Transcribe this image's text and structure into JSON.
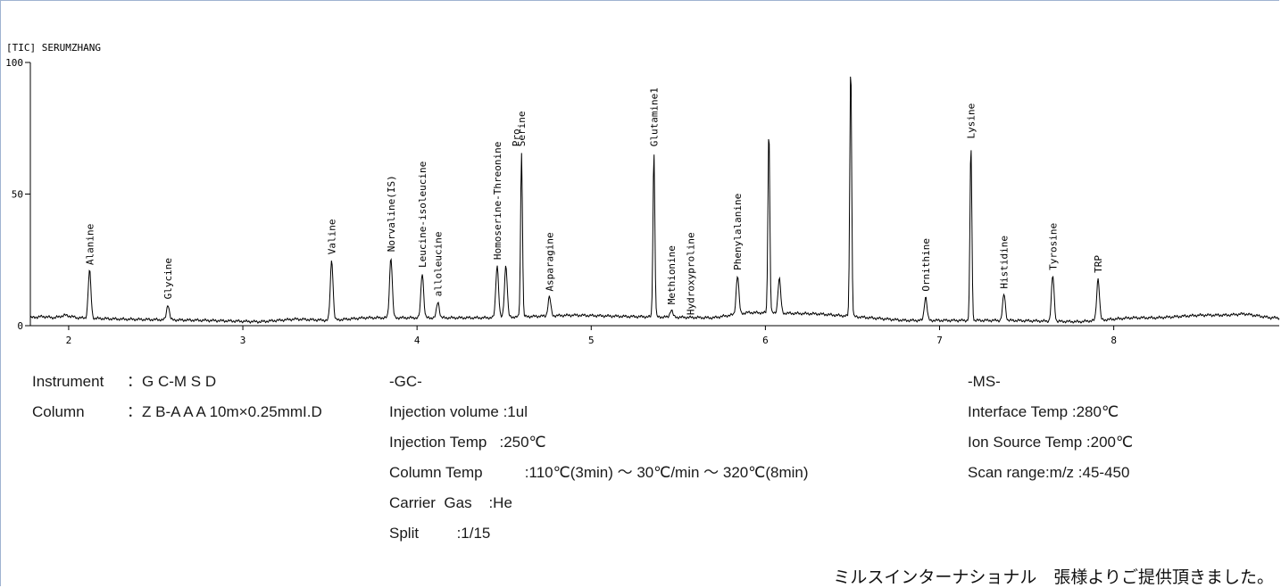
{
  "chart_data": {
    "type": "line",
    "title": "[TIC] SERUMZHANG",
    "xlabel": "",
    "ylabel": "",
    "xlim": [
      1.78,
      8.95
    ],
    "ylim": [
      0,
      100
    ],
    "x_ticks": [
      "2",
      "3",
      "4",
      "5",
      "6",
      "7",
      "8"
    ],
    "y_ticks": [
      "0",
      "50",
      "100"
    ],
    "grid": false,
    "baseline": [
      [
        1.78,
        3
      ],
      [
        1.85,
        3.5
      ],
      [
        1.92,
        3
      ],
      [
        1.98,
        4
      ],
      [
        2.05,
        3
      ],
      [
        2.3,
        2.5
      ],
      [
        2.8,
        2
      ],
      [
        3.1,
        1.5
      ],
      [
        3.3,
        2.5
      ],
      [
        3.5,
        2
      ],
      [
        3.7,
        3
      ],
      [
        4.0,
        3
      ],
      [
        4.4,
        3
      ],
      [
        4.9,
        4
      ],
      [
        5.2,
        3.5
      ],
      [
        5.7,
        3
      ],
      [
        5.9,
        5
      ],
      [
        6.3,
        4.5
      ],
      [
        6.8,
        2
      ],
      [
        7.0,
        2
      ],
      [
        7.4,
        2
      ],
      [
        7.8,
        1.5
      ],
      [
        8.1,
        3
      ],
      [
        8.25,
        3
      ],
      [
        8.5,
        4
      ],
      [
        8.65,
        4
      ],
      [
        8.75,
        4.5
      ],
      [
        8.9,
        3
      ],
      [
        8.95,
        3
      ]
    ],
    "peaks": [
      {
        "rt": 2.12,
        "height": 21,
        "label": "Alanine"
      },
      {
        "rt": 2.57,
        "height": 8,
        "label": "Glycine"
      },
      {
        "rt": 3.51,
        "height": 25,
        "label": "Valine"
      },
      {
        "rt": 3.85,
        "height": 26,
        "label": "Norvaline(IS)"
      },
      {
        "rt": 4.03,
        "height": 20,
        "label": "Leucine-isoleucine"
      },
      {
        "rt": 4.12,
        "height": 9,
        "label": "alloleucine"
      },
      {
        "rt": 4.46,
        "height": 23,
        "label": "Homoserine-Threonine"
      },
      {
        "rt": 4.51,
        "height": 23,
        "label": ""
      },
      {
        "rt": 4.6,
        "height": 66,
        "label": "Serine"
      },
      {
        "rt": 4.76,
        "height": 11,
        "label": "Asparagine"
      },
      {
        "rt": 5.36,
        "height": 66,
        "label": "Glutamine1"
      },
      {
        "rt": 5.46,
        "height": 6,
        "label": "Methionine"
      },
      {
        "rt": 5.57,
        "height": 2,
        "label": "Hydroxyproline"
      },
      {
        "rt": 5.84,
        "height": 19,
        "label": "Phenylalanine"
      },
      {
        "rt": 6.02,
        "height": 75,
        "label": ""
      },
      {
        "rt": 6.08,
        "height": 18,
        "label": ""
      },
      {
        "rt": 6.49,
        "height": 100,
        "label": ""
      },
      {
        "rt": 6.92,
        "height": 11,
        "label": "Ornithine"
      },
      {
        "rt": 7.18,
        "height": 69,
        "label": "Lysine"
      },
      {
        "rt": 7.37,
        "height": 12,
        "label": "Histidine"
      },
      {
        "rt": 7.65,
        "height": 19,
        "label": "Tyrosine"
      },
      {
        "rt": 7.91,
        "height": 18,
        "label": "TRP"
      }
    ],
    "extra_labels": [
      {
        "label": "Pro",
        "rt": 4.61,
        "height": 66
      }
    ]
  },
  "info": {
    "left": [
      {
        "label": "Instrument",
        "value": "：G C-M S D"
      },
      {
        "label": "Column",
        "value": "：Z B-A A A 10m×0.25mmI.D"
      }
    ],
    "gc_title": "-GC-",
    "gc": [
      "Injection volume :1ul",
      "Injection Temp   :250℃",
      "Column Temp          :110℃(3min) ～ 30℃/min ～ 320℃(8min)",
      "Carrier  Gas    :He",
      "Split         :1/15"
    ],
    "ms_title": "-MS-",
    "ms": [
      "Interface Temp :280℃",
      "Ion Source Temp :200℃",
      "Scan range:m/z :45-450"
    ]
  },
  "footer": "ミルスインターナショナル　張様よりご提供頂きました。",
  "colors": {
    "trace": "#000000",
    "axis": "#000000",
    "text": "#1a1a1a"
  }
}
